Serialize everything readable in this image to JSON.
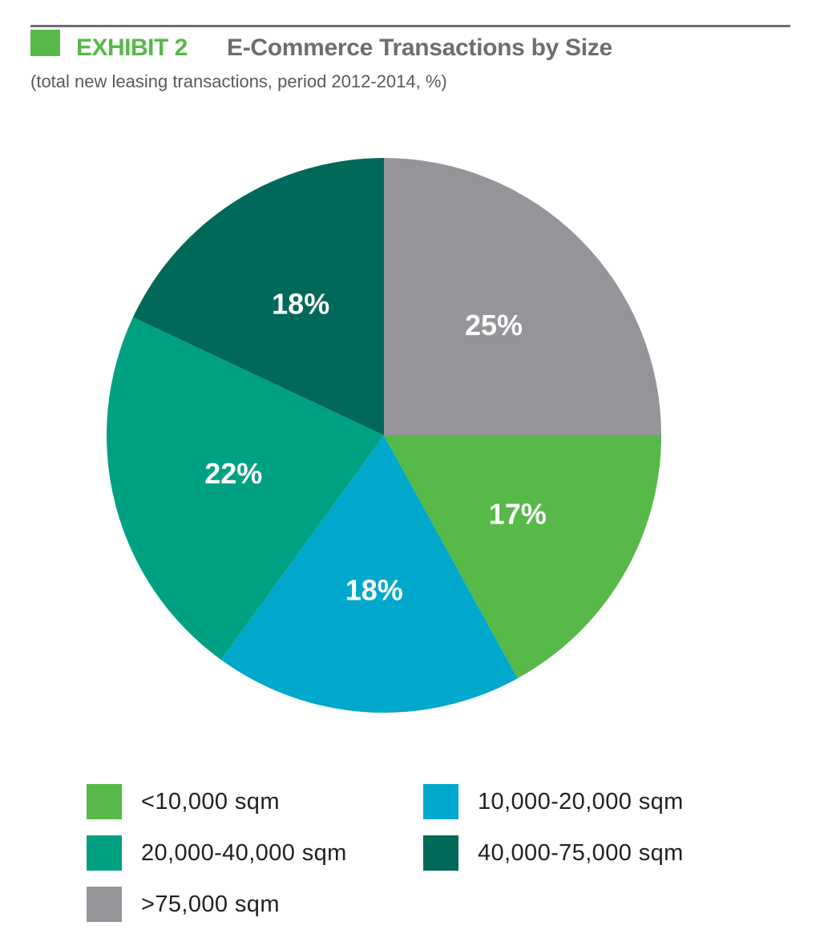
{
  "header": {
    "exhibit_label": "EXHIBIT 2",
    "title": "E-Commerce Transactions by Size",
    "subtitle": "(total new leasing transactions, period 2012-2014, %)",
    "accent_color": "#56b948",
    "rule_color": "#6d6e71"
  },
  "chart_data": {
    "type": "pie",
    "title": "E-Commerce Transactions by Size",
    "subtitle": "(total new leasing transactions, period 2012-2014, %)",
    "unit": "%",
    "start_angle": "12 o'clock",
    "direction": "clockwise",
    "slices": [
      {
        "label": ">75,000 sqm",
        "value": 25,
        "display": "25%",
        "color": "#939598"
      },
      {
        "label": "<10,000 sqm",
        "value": 17,
        "display": "17%",
        "color": "#56b948"
      },
      {
        "label": "10,000-20,000 sqm",
        "value": 18,
        "display": "18%",
        "color": "#00a8cc"
      },
      {
        "label": "20,000-40,000 sqm",
        "value": 22,
        "display": "22%",
        "color": "#00a082"
      },
      {
        "label": "40,000-75,000 sqm",
        "value": 18,
        "display": "18%",
        "color": "#00695a"
      }
    ],
    "legend": {
      "placement": "bottom",
      "items": [
        {
          "label": "<10,000 sqm",
          "color": "#56b948"
        },
        {
          "label": "10,000-20,000 sqm",
          "color": "#00a8cc"
        },
        {
          "label": "20,000-40,000 sqm",
          "color": "#00a082"
        },
        {
          "label": "40,000-75,000 sqm",
          "color": "#00695a"
        },
        {
          "label": ">75,000 sqm",
          "color": "#939598"
        }
      ]
    }
  }
}
